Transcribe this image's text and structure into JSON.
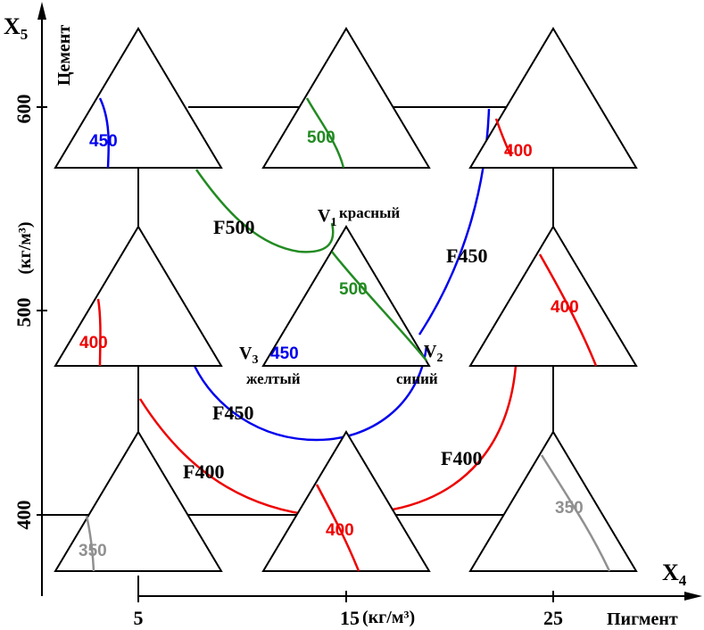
{
  "axes": {
    "x_symbol": "X",
    "x_subscript": "4",
    "x_title": "Пигмент",
    "x_ticks": [
      "5",
      "15",
      "25"
    ],
    "x_unit": "(кг/м³)",
    "y_symbol": "X",
    "y_subscript": "5",
    "y_title": "Цемент",
    "y_ticks": [
      "400",
      "500",
      "600"
    ],
    "y_unit": "(кг/м³)"
  },
  "vertices": {
    "v1": {
      "label": "V",
      "sub": "1",
      "name": "красный"
    },
    "v2": {
      "label": "V",
      "sub": "2",
      "name": "синий"
    },
    "v3": {
      "label": "V",
      "sub": "3",
      "name": "желтый"
    }
  },
  "curves": {
    "f500": {
      "label": "F500",
      "color": "#228B22"
    },
    "f450_upper": {
      "label": "F450",
      "color": "#0000EE"
    },
    "f450_lower": {
      "label": "F450",
      "color": "#0000EE"
    },
    "f400_left": {
      "label": "F400",
      "color": "#EE0000"
    },
    "f400_right": {
      "label": "F400",
      "color": "#EE0000"
    }
  },
  "contour_labels": {
    "tl": {
      "text": "450",
      "color": "#0000EE"
    },
    "tm": {
      "text": "500",
      "color": "#228B22"
    },
    "tr": {
      "text": "400",
      "color": "#EE0000"
    },
    "ml": {
      "text": "400",
      "color": "#EE0000"
    },
    "mm_green": {
      "text": "500",
      "color": "#228B22"
    },
    "mm_blue": {
      "text": "450",
      "color": "#0000EE"
    },
    "mr": {
      "text": "400",
      "color": "#EE0000"
    },
    "bl": {
      "text": "350",
      "color": "#909090"
    },
    "bm": {
      "text": "400",
      "color": "#EE0000"
    },
    "br": {
      "text": "350",
      "color": "#909090"
    }
  }
}
